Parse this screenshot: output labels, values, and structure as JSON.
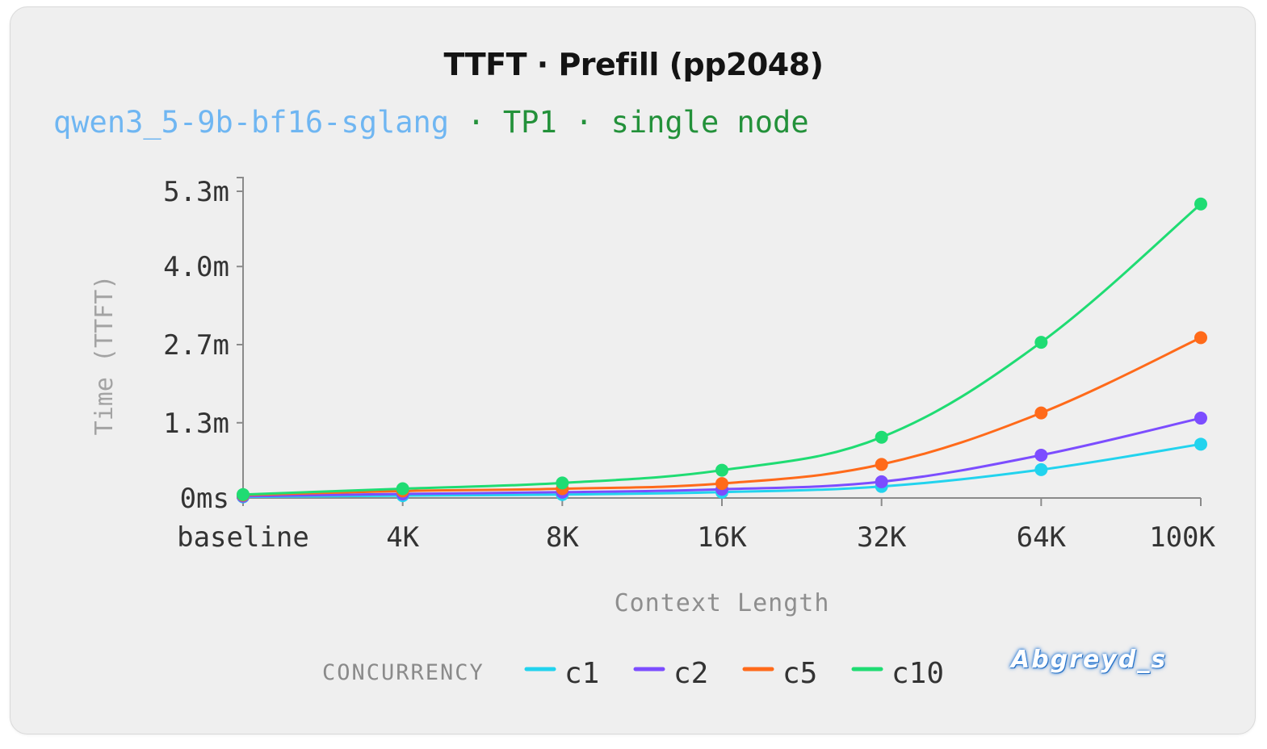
{
  "chart_data": {
    "type": "line",
    "title": "TTFT · Prefill (pp2048)",
    "subtitle": {
      "model": "qwen3_5-9b-bf16-sglang",
      "sep1": " · ",
      "tp": "TP1",
      "sep2": " · ",
      "node": "single node"
    },
    "xlabel": "Context Length",
    "ylabel": "Time (TTFT)",
    "categories": [
      "baseline",
      "4K",
      "8K",
      "16K",
      "32K",
      "64K",
      "100K"
    ],
    "y_ticks": [
      {
        "value": 0,
        "label": "0ms"
      },
      {
        "value": 1.3,
        "label": "1.3m"
      },
      {
        "value": 2.65,
        "label": "2.7m"
      },
      {
        "value": 4.0,
        "label": "4.0m"
      },
      {
        "value": 5.3,
        "label": "5.3m"
      }
    ],
    "y_unit": "minutes",
    "ylim": [
      0,
      5.3
    ],
    "grid": false,
    "legend": {
      "title": "CONCURRENCY",
      "position": "bottom"
    },
    "series": [
      {
        "name": "c1",
        "color": "#22d3ee",
        "values": [
          0.02,
          0.04,
          0.06,
          0.1,
          0.2,
          0.49,
          0.93
        ]
      },
      {
        "name": "c2",
        "color": "#7c4dff",
        "values": [
          0.03,
          0.07,
          0.1,
          0.15,
          0.28,
          0.74,
          1.38
        ]
      },
      {
        "name": "c5",
        "color": "#ff6a1a",
        "values": [
          0.05,
          0.12,
          0.16,
          0.25,
          0.58,
          1.47,
          2.77
        ]
      },
      {
        "name": "c10",
        "color": "#1fdc73",
        "values": [
          0.06,
          0.16,
          0.26,
          0.48,
          1.05,
          2.69,
          5.08
        ]
      }
    ]
  },
  "watermark": "Abgreyd_s"
}
